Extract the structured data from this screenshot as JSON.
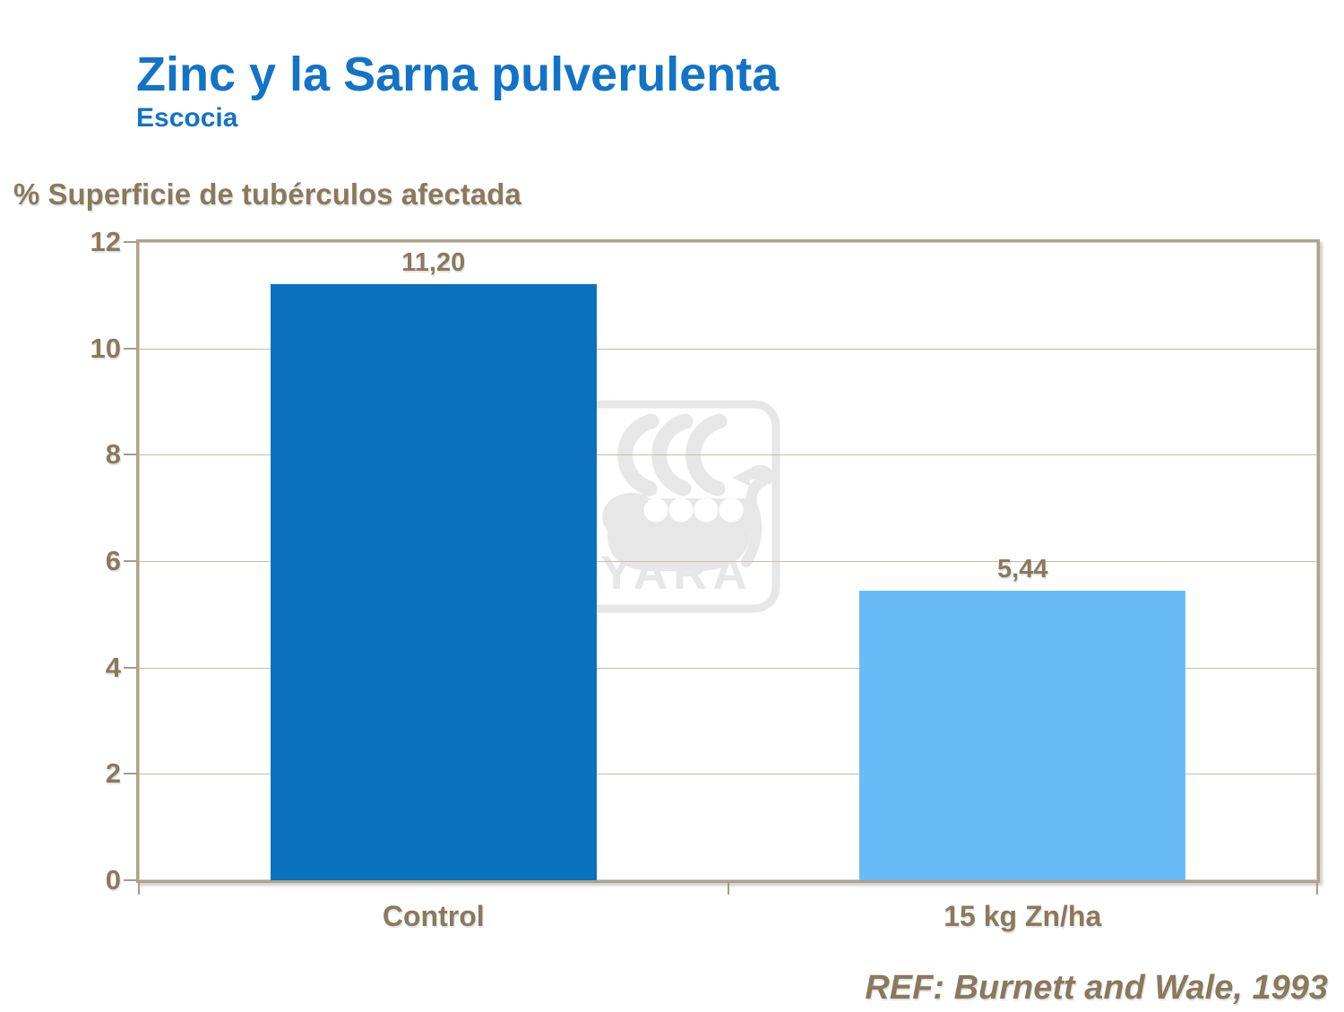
{
  "header": {
    "title": "Zinc y la Sarna pulverulenta",
    "subtitle": "Escocia"
  },
  "chart_data": {
    "type": "bar",
    "title": "Zinc y la Sarna pulverulenta",
    "subtitle": "Escocia",
    "ylabel": "% Superficie de tubérculos afectada",
    "xlabel": "",
    "categories": [
      "Control",
      "15 kg Zn/ha"
    ],
    "values": [
      11.2,
      5.44
    ],
    "value_labels": [
      "11,20",
      "5,44"
    ],
    "ylim": [
      0,
      12
    ],
    "yticks": [
      0,
      2,
      4,
      6,
      8,
      10,
      12
    ],
    "grid": true,
    "legend": false,
    "bar_colors": [
      "#0A71BE",
      "#69BBF8"
    ],
    "reference": "REF: Burnett and Wale, 1993",
    "watermark_text": "YARA"
  },
  "colors": {
    "title_blue": "#1273C7",
    "text_brown": "#8A795D",
    "border_tan": "#ADA28F",
    "grid_tan": "#C6BCAB",
    "tick_tan": "#A79C88",
    "watermark_gray": "#E7E7E7",
    "background": "#FFFFFF"
  }
}
